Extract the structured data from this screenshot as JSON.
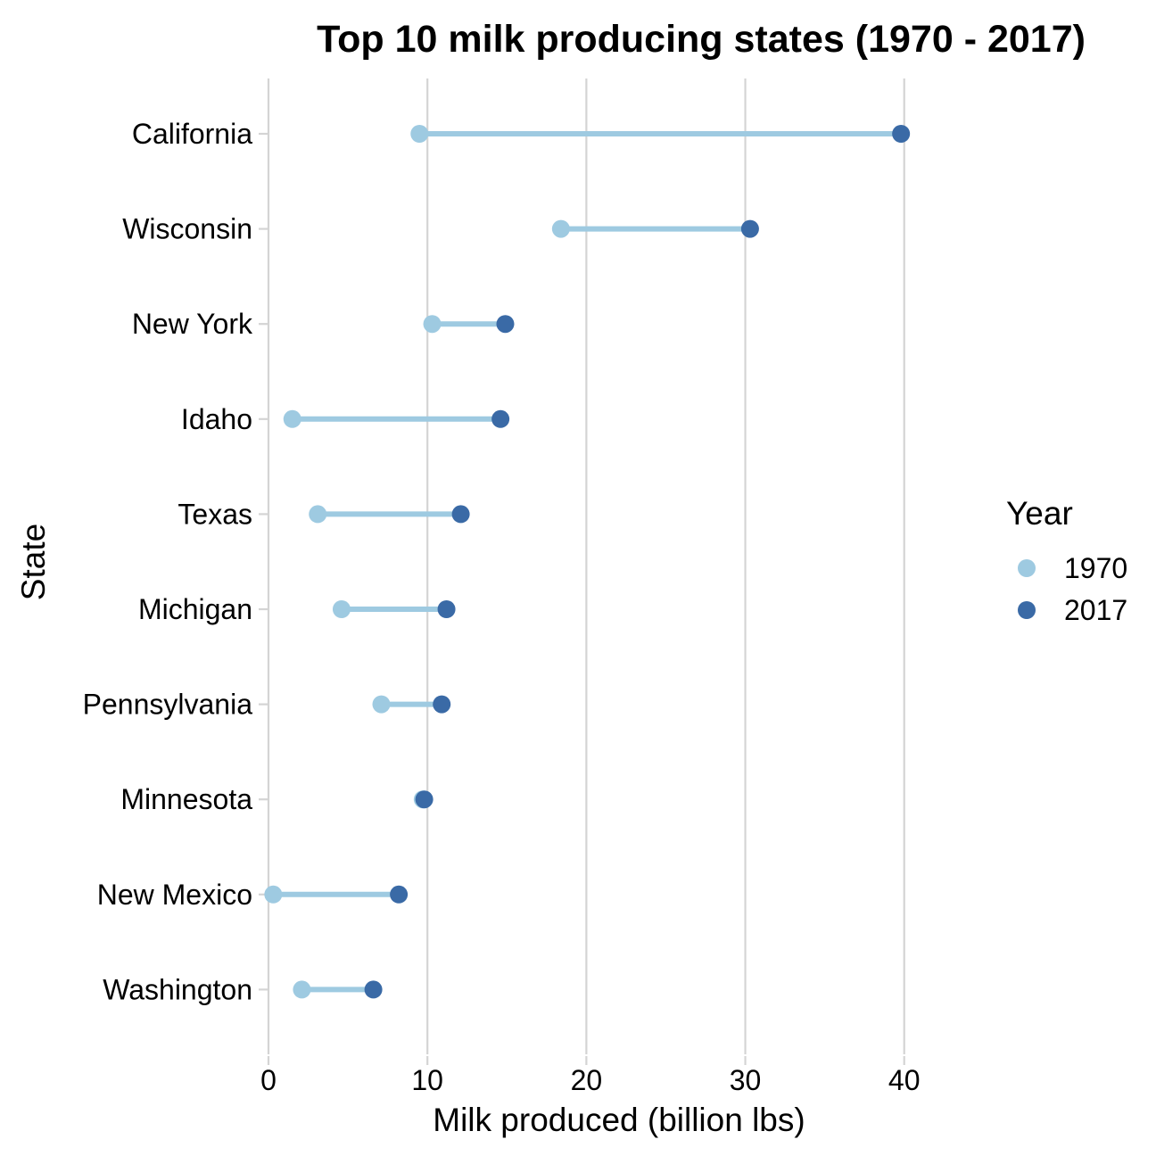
{
  "chart_data": {
    "type": "dumbbell",
    "title": "Top 10 milk producing states (1970 - 2017)",
    "xlabel": "Milk produced (billion lbs)",
    "ylabel": "State",
    "xlim": [
      0,
      44
    ],
    "xticks": [
      0,
      10,
      20,
      30,
      40
    ],
    "xtick_labels": [
      "0",
      "10",
      "20",
      "30",
      "40"
    ],
    "grid": "vertical major lines only",
    "legend": {
      "title": "Year",
      "placement": "right",
      "entries": [
        "1970",
        "2017"
      ]
    },
    "colors": {
      "1970": "#9ecae1",
      "2017": "#3a6aa6",
      "segment": "#9ecae1",
      "grid": "#d4d4d4"
    },
    "categories": [
      "California",
      "Wisconsin",
      "New York",
      "Idaho",
      "Texas",
      "Michigan",
      "Pennsylvania",
      "Minnesota",
      "New Mexico",
      "Washington"
    ],
    "series": [
      {
        "name": "1970",
        "values": [
          9.5,
          18.4,
          10.3,
          1.5,
          3.1,
          4.6,
          7.1,
          9.7,
          0.3,
          2.1
        ]
      },
      {
        "name": "2017",
        "values": [
          39.8,
          30.3,
          14.9,
          14.6,
          12.1,
          11.2,
          10.9,
          9.8,
          8.2,
          6.6
        ]
      }
    ]
  }
}
